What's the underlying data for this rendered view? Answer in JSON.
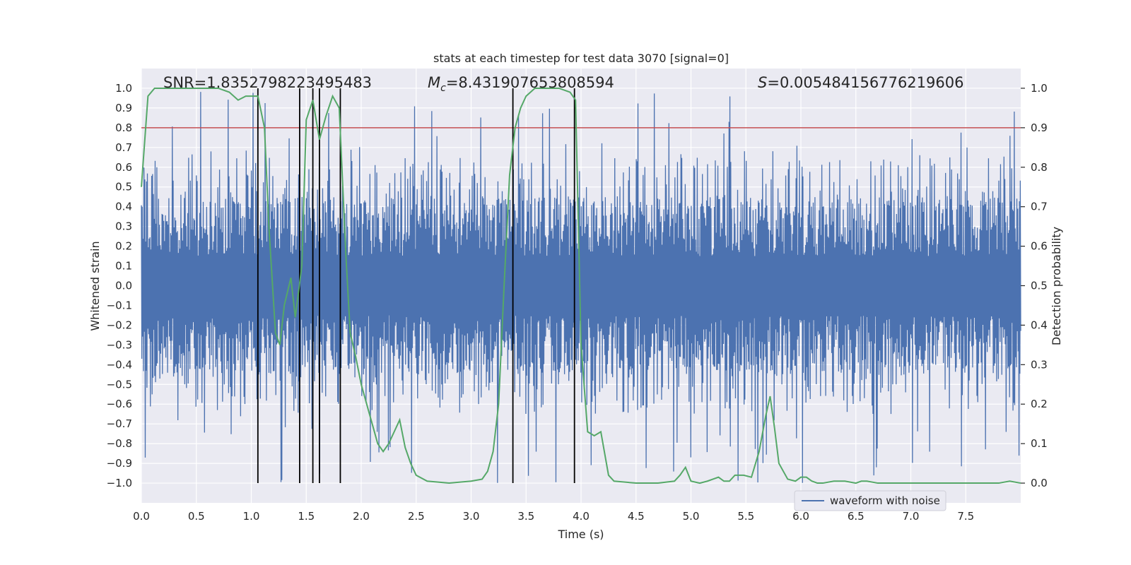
{
  "chart_data": {
    "type": "line",
    "title": "stats at each timestep for test data 3070 [signal=0]",
    "xlabel": "Time (s)",
    "ylabel": "Whitened strain",
    "y2label": "Detection probability",
    "xlim": [
      0.0,
      8.0
    ],
    "ylim": [
      -1.1,
      1.1
    ],
    "y2lim": [
      -0.05,
      1.05
    ],
    "x_ticks": [
      0.0,
      0.5,
      1.0,
      1.5,
      2.0,
      2.5,
      3.0,
      3.5,
      4.0,
      4.5,
      5.0,
      5.5,
      6.0,
      6.5,
      7.0,
      7.5
    ],
    "x_tick_labels": [
      "0.0",
      "0.5",
      "1.0",
      "1.5",
      "2.0",
      "2.5",
      "3.0",
      "3.5",
      "4.0",
      "4.5",
      "5.0",
      "5.5",
      "6.0",
      "6.5",
      "7.0",
      "7.5"
    ],
    "y_ticks": [
      1.0,
      0.9,
      0.8,
      0.7,
      0.6,
      0.5,
      0.4,
      0.3,
      0.2,
      0.1,
      0.0,
      -0.1,
      -0.2,
      -0.3,
      -0.4,
      -0.5,
      -0.6,
      -0.7,
      -0.8,
      -0.9,
      -1.0
    ],
    "y_tick_labels": [
      "1.0",
      "0.9",
      "0.8",
      "0.7",
      "0.6",
      "0.5",
      "0.4",
      "0.3",
      "0.2",
      "0.1",
      "0.0",
      "−0.1",
      "−0.2",
      "−0.3",
      "−0.4",
      "−0.5",
      "−0.6",
      "−0.7",
      "−0.8",
      "−0.9",
      "−1.0"
    ],
    "y2_ticks": [
      1.0,
      0.9,
      0.8,
      0.7,
      0.6,
      0.5,
      0.4,
      0.3,
      0.2,
      0.1,
      0.0
    ],
    "y2_tick_labels": [
      "1.0",
      "0.9",
      "0.8",
      "0.7",
      "0.6",
      "0.5",
      "0.4",
      "0.3",
      "0.2",
      "0.1",
      "0.0"
    ],
    "grid": true,
    "threshold": {
      "axis": "y",
      "value": 0.8
    },
    "vlines_x": [
      1.06,
      1.44,
      1.56,
      1.62,
      1.81,
      3.38,
      3.94
    ],
    "vlines_y_range": [
      -1.0,
      1.0
    ],
    "waveform": {
      "name": "waveform with noise",
      "style": "noise",
      "seed": 3070,
      "n_samples": 2048,
      "typical_band": [
        -0.45,
        0.45
      ],
      "peak_range": [
        -1.0,
        1.0
      ]
    },
    "prob_series": {
      "name": "detection probability",
      "x": [
        0.0,
        0.06,
        0.12,
        0.2,
        0.3,
        0.5,
        0.7,
        0.8,
        0.88,
        0.95,
        1.0,
        1.06,
        1.12,
        1.16,
        1.22,
        1.26,
        1.3,
        1.36,
        1.4,
        1.46,
        1.5,
        1.56,
        1.62,
        1.68,
        1.74,
        1.8,
        1.86,
        1.9,
        1.95,
        2.0,
        2.05,
        2.1,
        2.15,
        2.2,
        2.25,
        2.3,
        2.35,
        2.4,
        2.45,
        2.5,
        2.6,
        2.8,
        3.0,
        3.1,
        3.15,
        3.2,
        3.25,
        3.3,
        3.35,
        3.4,
        3.45,
        3.5,
        3.58,
        3.65,
        3.8,
        3.9,
        3.95,
        4.0,
        4.06,
        4.12,
        4.18,
        4.25,
        4.3,
        4.5,
        4.7,
        4.85,
        4.9,
        4.95,
        5.0,
        5.08,
        5.15,
        5.2,
        5.25,
        5.3,
        5.35,
        5.4,
        5.48,
        5.55,
        5.62,
        5.68,
        5.72,
        5.76,
        5.8,
        5.88,
        5.95,
        6.0,
        6.05,
        6.1,
        6.15,
        6.2,
        6.3,
        6.4,
        6.5,
        6.55,
        6.6,
        6.7,
        6.8,
        6.9,
        7.0,
        7.2,
        7.4,
        7.6,
        7.8,
        7.9,
        8.0
      ],
      "values": [
        0.75,
        0.98,
        1.0,
        1.0,
        1.0,
        1.0,
        1.0,
        0.99,
        0.97,
        0.98,
        0.98,
        0.98,
        0.9,
        0.65,
        0.38,
        0.35,
        0.45,
        0.52,
        0.42,
        0.55,
        0.92,
        0.97,
        0.87,
        0.93,
        0.98,
        0.95,
        0.58,
        0.38,
        0.32,
        0.25,
        0.2,
        0.15,
        0.1,
        0.08,
        0.1,
        0.13,
        0.16,
        0.09,
        0.05,
        0.02,
        0.005,
        0.0,
        0.005,
        0.01,
        0.03,
        0.08,
        0.2,
        0.5,
        0.78,
        0.9,
        0.95,
        0.98,
        1.0,
        1.0,
        1.0,
        0.99,
        0.97,
        0.35,
        0.13,
        0.12,
        0.13,
        0.02,
        0.005,
        0.0,
        0.0,
        0.005,
        0.02,
        0.04,
        0.005,
        0.0,
        0.005,
        0.01,
        0.015,
        0.005,
        0.005,
        0.02,
        0.02,
        0.015,
        0.08,
        0.17,
        0.22,
        0.14,
        0.05,
        0.01,
        0.005,
        0.015,
        0.015,
        0.005,
        0.0,
        0.0,
        0.005,
        0.005,
        0.0,
        0.005,
        0.005,
        0.0,
        0.0,
        0.0,
        0.0,
        0.0,
        0.0,
        0.0,
        0.0,
        0.005,
        0.0
      ]
    },
    "annotations": [
      {
        "text": "SNR=1.8352798223495483"
      },
      {
        "symbol": "M",
        "subscript": "c",
        "text": "=8.431907653808594"
      },
      {
        "symbol": "S",
        "text": "=0.005484156776219606"
      }
    ],
    "legend": {
      "entries": [
        "waveform with noise"
      ],
      "position": "lower-right"
    }
  },
  "colors": {
    "background": "#ffffff",
    "plot_bg": "#eaeaf2",
    "grid": "#ffffff",
    "waveform": "#4c72b0",
    "probability": "#55a868",
    "threshold": "#c44e52",
    "vlines": "#000000",
    "text": "#262626"
  }
}
